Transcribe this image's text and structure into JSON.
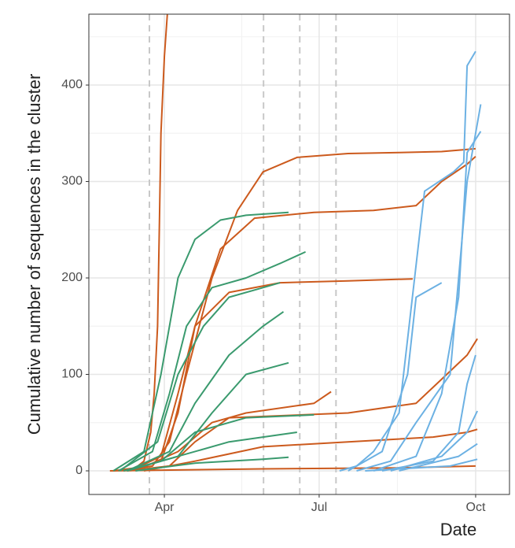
{
  "chart_data": {
    "type": "line",
    "xlabel": "Date",
    "ylabel": "Cumulative number of sequences in the cluster",
    "xlim": [
      47.6,
      294.9
    ],
    "ylim": [
      -24.5,
      473.5
    ],
    "xticks": [
      {
        "value": 92,
        "label": "Apr"
      },
      {
        "value": 183,
        "label": "Jul"
      },
      {
        "value": 275,
        "label": "Oct"
      }
    ],
    "yticks": [
      0,
      100,
      200,
      300,
      400
    ],
    "grid": true,
    "vlines": [
      83.2,
      150.3,
      171.6,
      192.9
    ],
    "series": [
      {
        "color": "#cc5a1d",
        "x": [
          62,
          75,
          80,
          84,
          86,
          88,
          89,
          90,
          92,
          94
        ],
        "values": [
          0,
          3,
          10,
          40,
          80,
          150,
          250,
          350,
          430,
          480
        ]
      },
      {
        "color": "#cc5a1d",
        "x": [
          68,
          85,
          95,
          105,
          120,
          135,
          150,
          170,
          200,
          230,
          255,
          275
        ],
        "values": [
          0,
          5,
          30,
          100,
          200,
          270,
          310,
          325,
          329,
          330,
          331,
          334
        ]
      },
      {
        "color": "#cc5a1d",
        "x": [
          70,
          90,
          100,
          110,
          125,
          145,
          180,
          215,
          240,
          255,
          270,
          275
        ],
        "values": [
          0,
          10,
          60,
          150,
          230,
          262,
          268,
          270,
          275,
          300,
          318,
          326
        ]
      },
      {
        "color": "#cc5a1d",
        "x": [
          72,
          90,
          100,
          110,
          130,
          160,
          200,
          238
        ],
        "values": [
          0,
          15,
          80,
          150,
          185,
          195,
          197,
          199
        ]
      },
      {
        "color": "#cc5a1d",
        "x": [
          70,
          95,
          110,
          130,
          200,
          240,
          255,
          270,
          276
        ],
        "values": [
          0,
          5,
          30,
          55,
          60,
          70,
          95,
          120,
          137
        ]
      },
      {
        "color": "#cc5a1d",
        "x": [
          75,
          100,
          120,
          140,
          180,
          190
        ],
        "values": [
          0,
          20,
          50,
          60,
          70,
          82
        ]
      },
      {
        "color": "#cc5a1d",
        "x": [
          80,
          110,
          150,
          200,
          250,
          270,
          276
        ],
        "values": [
          0,
          10,
          25,
          30,
          35,
          40,
          43
        ]
      },
      {
        "color": "#cc5a1d",
        "x": [
          60,
          150,
          230,
          275
        ],
        "values": [
          0,
          2,
          3,
          5
        ]
      },
      {
        "color": "#3a9a6e",
        "x": [
          62,
          80,
          90,
          100,
          110,
          125,
          140,
          165
        ],
        "values": [
          0,
          20,
          100,
          200,
          240,
          260,
          265,
          268
        ]
      },
      {
        "color": "#3a9a6e",
        "x": [
          65,
          85,
          95,
          105,
          120,
          140,
          160,
          175
        ],
        "values": [
          0,
          20,
          80,
          150,
          190,
          200,
          215,
          227
        ]
      },
      {
        "color": "#3a9a6e",
        "x": [
          66,
          88,
          100,
          115,
          130,
          150,
          160
        ],
        "values": [
          0,
          30,
          100,
          150,
          180,
          190,
          195
        ]
      },
      {
        "color": "#3a9a6e",
        "x": [
          70,
          95,
          110,
          130,
          150,
          162
        ],
        "values": [
          0,
          20,
          70,
          120,
          150,
          165
        ]
      },
      {
        "color": "#3a9a6e",
        "x": [
          70,
          100,
          120,
          140,
          165
        ],
        "values": [
          0,
          15,
          60,
          100,
          112
        ]
      },
      {
        "color": "#3a9a6e",
        "x": [
          68,
          90,
          110,
          140,
          180
        ],
        "values": [
          0,
          10,
          40,
          55,
          58
        ]
      },
      {
        "color": "#3a9a6e",
        "x": [
          70,
          100,
          130,
          170
        ],
        "values": [
          0,
          15,
          30,
          40
        ]
      },
      {
        "color": "#3a9a6e",
        "x": [
          75,
          110,
          150,
          165
        ],
        "values": [
          0,
          8,
          12,
          14
        ]
      },
      {
        "color": "#6cb1e3",
        "x": [
          195,
          205,
          215,
          230,
          245,
          262,
          268,
          270,
          275
        ],
        "values": [
          0,
          5,
          20,
          60,
          290,
          310,
          320,
          420,
          435
        ]
      },
      {
        "color": "#6cb1e3",
        "x": [
          205,
          225,
          240,
          260,
          270,
          278
        ],
        "values": [
          0,
          10,
          50,
          100,
          300,
          380
        ]
      },
      {
        "color": "#6cb1e3",
        "x": [
          215,
          240,
          255,
          265,
          270,
          278
        ],
        "values": [
          0,
          15,
          80,
          180,
          330,
          352
        ]
      },
      {
        "color": "#6cb1e3",
        "x": [
          200,
          220,
          235,
          240,
          255
        ],
        "values": [
          0,
          20,
          100,
          180,
          195
        ]
      },
      {
        "color": "#6cb1e3",
        "x": [
          220,
          250,
          265,
          270,
          275
        ],
        "values": [
          0,
          10,
          40,
          90,
          120
        ]
      },
      {
        "color": "#6cb1e3",
        "x": [
          225,
          255,
          270,
          276
        ],
        "values": [
          0,
          15,
          40,
          62
        ]
      },
      {
        "color": "#6cb1e3",
        "x": [
          230,
          265,
          276
        ],
        "values": [
          0,
          15,
          28
        ]
      },
      {
        "color": "#6cb1e3",
        "x": [
          210,
          260,
          276
        ],
        "values": [
          0,
          5,
          12
        ]
      }
    ]
  }
}
